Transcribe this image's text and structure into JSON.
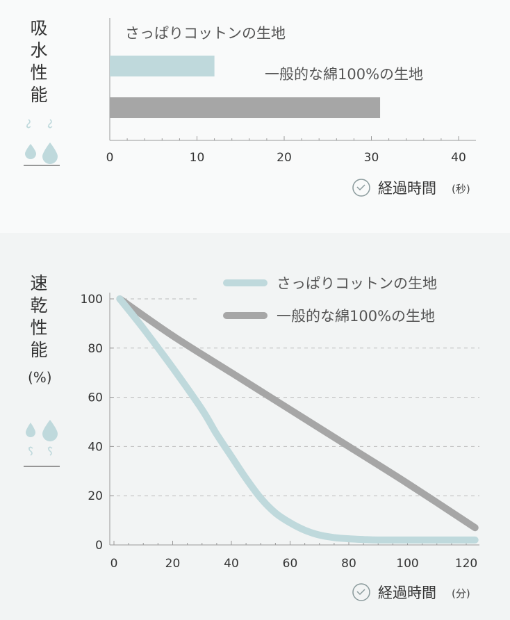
{
  "absorption": {
    "title_chars": "吸\n水\n性\n能",
    "icon": "water-drops-absorb-icon",
    "timer_icon": "clock-check-icon",
    "xlabel": "経過時間",
    "xunit": "(秒)",
    "color_primary": "#bfd9dc",
    "color_secondary": "#a6a6a6"
  },
  "drying": {
    "title_chars": "速\n乾\n性\n能",
    "unit": "(%)",
    "icon": "water-drops-evaporate-icon",
    "timer_icon": "clock-check-icon",
    "xlabel": "経過時間",
    "xunit": "(分)"
  },
  "chart_data": [
    {
      "type": "bar",
      "orientation": "horizontal",
      "categories": [
        "さっぱりコットンの生地",
        "一般的な綿100%の生地"
      ],
      "values": [
        12,
        31
      ],
      "xticks": [
        "0",
        "10",
        "20",
        "30",
        "40"
      ],
      "xlim": [
        0,
        40
      ],
      "xlabel": "経過時間",
      "xunit": "(秒)",
      "colors": [
        "#bfd9dc",
        "#a6a6a6"
      ],
      "grid": false
    },
    {
      "type": "line",
      "series": [
        {
          "name": "さっぱりコットンの生地",
          "color": "#bfd9dc",
          "x": [
            2,
            10,
            20,
            30,
            35,
            40,
            45,
            50,
            55,
            60,
            65,
            70,
            75,
            80,
            85,
            90,
            100,
            110,
            123
          ],
          "y": [
            100,
            88,
            72,
            55,
            45,
            36,
            27,
            19,
            13,
            9,
            6,
            4,
            3,
            2.5,
            2.2,
            2,
            2,
            2,
            2
          ]
        },
        {
          "name": "一般的な綿100%の生地",
          "color": "#a6a6a6",
          "x": [
            2,
            20,
            40,
            60,
            80,
            100,
            123
          ],
          "y": [
            100,
            85,
            70,
            55,
            40,
            25,
            7
          ]
        }
      ],
      "xticks": [
        "0",
        "20",
        "40",
        "60",
        "80",
        "100",
        "120"
      ],
      "yticks": [
        "0",
        "20",
        "40",
        "60",
        "80",
        "100"
      ],
      "xlim": [
        0,
        124
      ],
      "ylim": [
        0,
        100
      ],
      "xlabel": "経過時間",
      "xunit": "(分)",
      "ylabel": "速乾性能",
      "yunit": "(%)",
      "grid": "horizontal-dashed",
      "legend": "top-right"
    }
  ]
}
